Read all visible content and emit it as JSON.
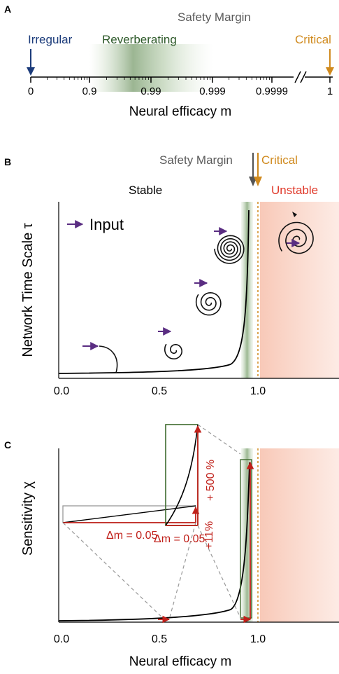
{
  "panelA": {
    "letter": "A",
    "label_irregular": "Irregular",
    "label_reverberating": "Reverberating",
    "label_safety": "Safety Margin",
    "label_critical": "Critical",
    "ticks": [
      "0",
      "0.9",
      "0.99",
      "0.999",
      "0.9999",
      "1"
    ],
    "xlabel": "Neural efficacy m"
  },
  "panelB": {
    "letter": "B",
    "label_safety": "Safety Margin",
    "label_critical": "Critical",
    "label_stable": "Stable",
    "label_unstable": "Unstable",
    "legend_input": "Input",
    "ylabel": "Network Time Scale τ",
    "ticks": [
      "0.0",
      "0.5",
      "1.0"
    ]
  },
  "panelC": {
    "letter": "C",
    "ylabel": "Sensitivity χ",
    "xlabel": "Neural efficacy m",
    "ticks": [
      "0.0",
      "0.5",
      "1.0"
    ],
    "delta_top": "Δm = 0.05",
    "delta_bottom": "Δm = 0.05",
    "pct_top": "+ 500 %",
    "pct_bottom": "+11%"
  },
  "colors": {
    "irregular": "#1b3b7a",
    "reverberating": "#2e5a2a",
    "safety": "#5a5a5a",
    "critical": "#d08a1e",
    "unstable": "#e0392a",
    "input": "#5a2d82",
    "annot": "#c0201a",
    "zoom_box": "#3e6a2e"
  }
}
